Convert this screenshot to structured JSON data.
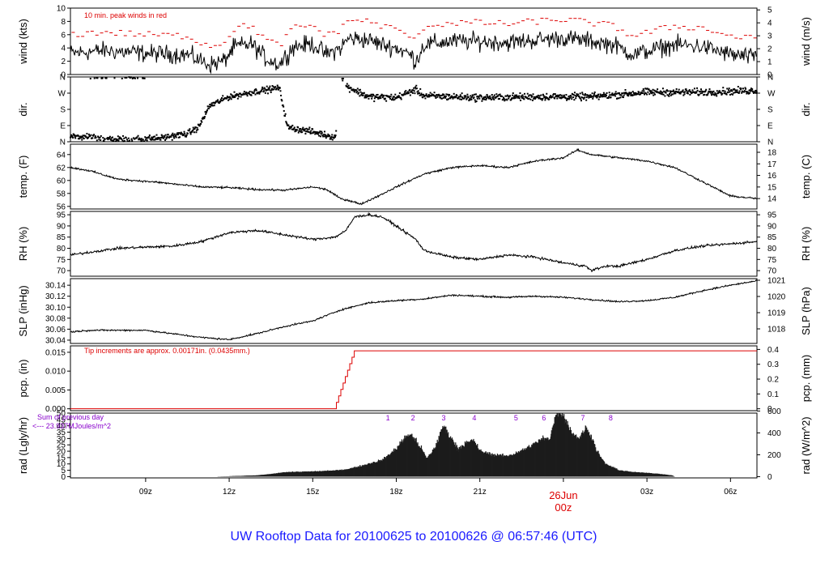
{
  "figure": {
    "title": "UW Rooftop Data for 20100625  to  20100626 @ 06:57:46  (UTC)",
    "title_color": "#1a1aff",
    "accent_red": "#dd0000",
    "purple": "#8800cc"
  },
  "x_axis": {
    "range_hours": [
      6.3,
      30.95
    ],
    "ticks": [
      {
        "hour": 9,
        "label": "09z"
      },
      {
        "hour": 12,
        "label": "12z"
      },
      {
        "hour": 15,
        "label": "15z"
      },
      {
        "hour": 18,
        "label": "18z"
      },
      {
        "hour": 21,
        "label": "21z"
      },
      {
        "hour": 24,
        "label": "00z"
      },
      {
        "hour": 27,
        "label": "03z"
      },
      {
        "hour": 30,
        "label": "06z"
      }
    ],
    "day_marker": {
      "hour": 24,
      "label_top": "26Jun",
      "label_bottom": "00z"
    }
  },
  "chart_data": [
    {
      "id": "wind",
      "type": "line",
      "ylabel_left": "wind (kts)",
      "ylabel_right": "wind (m/s)",
      "ylim": [
        0,
        10
      ],
      "yticks_left": [
        "0",
        "2",
        "4",
        "6",
        "8",
        "10"
      ],
      "yticks_right": [
        "0",
        "1",
        "2",
        "3",
        "4",
        "5"
      ],
      "ylim_right": [
        0,
        5.14
      ],
      "annotation": "10 min. peak winds in red",
      "keypoints": [
        [
          6.3,
          3.2
        ],
        [
          7.5,
          3.6
        ],
        [
          9,
          3.2
        ],
        [
          10.5,
          3.0
        ],
        [
          11.3,
          1.5
        ],
        [
          11.8,
          2.0
        ],
        [
          12.2,
          4.2
        ],
        [
          12.8,
          4.6
        ],
        [
          13.3,
          2.5
        ],
        [
          13.8,
          1.5
        ],
        [
          14.3,
          4.2
        ],
        [
          15,
          4.6
        ],
        [
          15.5,
          3.0
        ],
        [
          16,
          4.0
        ],
        [
          16.3,
          5.5
        ],
        [
          17,
          5.2
        ],
        [
          17.5,
          4.5
        ],
        [
          18,
          4.0
        ],
        [
          18.5,
          3.0
        ],
        [
          18.7,
          2.0
        ],
        [
          19,
          4.5
        ],
        [
          20,
          5.0
        ],
        [
          21,
          5.0
        ],
        [
          22,
          4.8
        ],
        [
          23,
          5.2
        ],
        [
          24,
          5.5
        ],
        [
          25,
          5.0
        ],
        [
          25.8,
          4.5
        ],
        [
          26.5,
          3.0
        ],
        [
          27,
          3.5
        ],
        [
          28,
          4.5
        ],
        [
          29,
          4.2
        ],
        [
          30,
          3.0
        ],
        [
          30.95,
          2.5
        ]
      ]
    },
    {
      "id": "dir",
      "type": "scatter",
      "ylabel_left": "dir.",
      "ylabel_right": "dir.",
      "ylim": [
        0,
        360
      ],
      "yticks_left": [
        "N",
        "E",
        "S",
        "W",
        "N"
      ],
      "yticks_right": [
        "N",
        "E",
        "S",
        "W",
        "N"
      ],
      "keypoints": [
        [
          6.3,
          30
        ],
        [
          8,
          15
        ],
        [
          9.5,
          20
        ],
        [
          10.5,
          45
        ],
        [
          10.9,
          80
        ],
        [
          11.3,
          200
        ],
        [
          12,
          250
        ],
        [
          13,
          280
        ],
        [
          13.8,
          300
        ],
        [
          14.1,
          80
        ],
        [
          15,
          55
        ],
        [
          15.8,
          25
        ],
        [
          16.2,
          310
        ],
        [
          17,
          250
        ],
        [
          18,
          245
        ],
        [
          18.7,
          290
        ],
        [
          19,
          255
        ],
        [
          21,
          245
        ],
        [
          23,
          250
        ],
        [
          25,
          250
        ],
        [
          27,
          275
        ],
        [
          29,
          275
        ],
        [
          30.95,
          285
        ]
      ]
    },
    {
      "id": "temp",
      "type": "line",
      "ylabel_left": "temp. (F)",
      "ylabel_right": "temp. (C)",
      "ylim": [
        55.6,
        65.6
      ],
      "yticks_left": [
        "56",
        "58",
        "60",
        "62",
        "64"
      ],
      "yticks_right": [
        "14",
        "15",
        "16",
        "17",
        "18"
      ],
      "ylim_right": [
        13.1,
        18.7
      ],
      "keypoints": [
        [
          6.3,
          62
        ],
        [
          7,
          61.5
        ],
        [
          8,
          60.2
        ],
        [
          9.5,
          59.7
        ],
        [
          11,
          59
        ],
        [
          12,
          58.9
        ],
        [
          13,
          58.6
        ],
        [
          14,
          58.5
        ],
        [
          15,
          59
        ],
        [
          15.5,
          58.6
        ],
        [
          16,
          57.2
        ],
        [
          16.5,
          56.7
        ],
        [
          16.7,
          56.3
        ],
        [
          17.3,
          57.5
        ],
        [
          18,
          59
        ],
        [
          19,
          61
        ],
        [
          20,
          62
        ],
        [
          21,
          62.3
        ],
        [
          22,
          62
        ],
        [
          23,
          63
        ],
        [
          24,
          63.5
        ],
        [
          24.5,
          64.7
        ],
        [
          25,
          64
        ],
        [
          26,
          63.5
        ],
        [
          27,
          63
        ],
        [
          28,
          62
        ],
        [
          29,
          59.8
        ],
        [
          30,
          57.6
        ],
        [
          30.95,
          57.2
        ]
      ]
    },
    {
      "id": "rh",
      "type": "line",
      "ylabel_left": "RH (%)",
      "ylabel_right": "RH (%)",
      "ylim": [
        67.5,
        96.5
      ],
      "yticks_left": [
        "70",
        "75",
        "80",
        "85",
        "90",
        "95"
      ],
      "yticks_right": [
        "70",
        "75",
        "80",
        "85",
        "90",
        "95"
      ],
      "keypoints": [
        [
          6.3,
          77
        ],
        [
          8,
          80
        ],
        [
          10,
          81
        ],
        [
          11,
          83
        ],
        [
          12,
          87
        ],
        [
          13,
          88
        ],
        [
          14,
          86
        ],
        [
          15,
          84
        ],
        [
          15.8,
          85
        ],
        [
          16.2,
          88
        ],
        [
          16.5,
          94
        ],
        [
          17,
          95
        ],
        [
          17.5,
          94
        ],
        [
          18,
          90
        ],
        [
          18.7,
          84
        ],
        [
          19,
          79
        ],
        [
          20,
          76
        ],
        [
          21,
          75
        ],
        [
          22,
          77
        ],
        [
          23,
          76
        ],
        [
          24,
          73.5
        ],
        [
          24.8,
          72
        ],
        [
          25,
          70
        ],
        [
          25.5,
          72
        ],
        [
          26,
          72
        ],
        [
          27,
          75
        ],
        [
          28,
          79
        ],
        [
          29,
          81
        ],
        [
          30,
          82
        ],
        [
          30.95,
          83
        ]
      ]
    },
    {
      "id": "slp",
      "type": "line",
      "ylabel_left": "SLP (inHg)",
      "ylabel_right": "SLP (hPa)",
      "ylim": [
        30.034,
        30.152
      ],
      "yticks_left": [
        "30.04",
        "30.06",
        "30.08",
        "30.10",
        "30.12",
        "30.14"
      ],
      "yticks_right": [
        "1018",
        "1019",
        "1020",
        "1021"
      ],
      "ylim_right": [
        1017.1,
        1021.1
      ],
      "keypoints": [
        [
          6.3,
          30.055
        ],
        [
          7,
          30.058
        ],
        [
          9,
          30.058
        ],
        [
          11,
          30.045
        ],
        [
          12,
          30.041
        ],
        [
          13,
          30.052
        ],
        [
          14,
          30.065
        ],
        [
          15,
          30.075
        ],
        [
          16,
          30.095
        ],
        [
          17,
          30.108
        ],
        [
          18,
          30.112
        ],
        [
          19,
          30.115
        ],
        [
          20,
          30.122
        ],
        [
          22,
          30.118
        ],
        [
          23,
          30.12
        ],
        [
          24,
          30.118
        ],
        [
          25,
          30.114
        ],
        [
          26,
          30.11
        ],
        [
          27,
          30.112
        ],
        [
          28,
          30.118
        ],
        [
          29,
          30.13
        ],
        [
          30,
          30.14
        ],
        [
          30.95,
          30.148
        ]
      ]
    },
    {
      "id": "pcp",
      "type": "line",
      "ylabel_left": "pcp. (in)",
      "ylabel_right": "pcp. (mm)",
      "ylim": [
        -0.0005,
        0.0167
      ],
      "yticks_left": [
        "0.000",
        "0.005",
        "0.010",
        "0.015"
      ],
      "yticks_right": [
        "0",
        "0.1",
        "0.2",
        "0.3",
        "0.4"
      ],
      "ylim_right": [
        -0.0127,
        0.424
      ],
      "annotation": "Tip increments are approx. 0.00171in. (0.0435mm.)",
      "keypoints": [
        [
          6.3,
          0
        ],
        [
          15.85,
          0
        ],
        [
          16.05,
          0.00342
        ],
        [
          16.4,
          0.0137
        ],
        [
          16.6,
          0.0154
        ],
        [
          30.95,
          0.0154
        ]
      ]
    },
    {
      "id": "rad",
      "type": "area",
      "ylabel_left": "rad (Lgly/hr)",
      "ylabel_right": "rad (W/m^2)",
      "ylim": [
        -1,
        50
      ],
      "yticks_left": [
        "0",
        "5",
        "10",
        "15",
        "20",
        "25",
        "30",
        "35",
        "40",
        "45",
        "50"
      ],
      "yticks_right": [
        "0",
        "200",
        "400",
        "600"
      ],
      "ylim_right": [
        -11.6,
        581
      ],
      "annotation_line1": "Sum of previous day",
      "annotation_line2": "<--- 23.937MJoules/m^2",
      "cloud_labels": [
        {
          "hour": 17.7,
          "label": "1"
        },
        {
          "hour": 18.6,
          "label": "2"
        },
        {
          "hour": 19.7,
          "label": "3"
        },
        {
          "hour": 20.8,
          "label": "4"
        },
        {
          "hour": 22.3,
          "label": "5"
        },
        {
          "hour": 23.3,
          "label": "6"
        },
        {
          "hour": 24.7,
          "label": "7"
        },
        {
          "hour": 25.7,
          "label": "8"
        }
      ],
      "keypoints": [
        [
          6.3,
          0
        ],
        [
          11.5,
          0
        ],
        [
          12,
          0.3
        ],
        [
          13,
          1
        ],
        [
          13.5,
          2
        ],
        [
          14,
          3.5
        ],
        [
          15,
          4
        ],
        [
          16,
          5
        ],
        [
          16.5,
          7
        ],
        [
          17,
          10
        ],
        [
          17.5,
          13
        ],
        [
          17.8,
          18
        ],
        [
          18,
          22
        ],
        [
          18.3,
          30
        ],
        [
          18.5,
          33
        ],
        [
          18.7,
          28
        ],
        [
          18.9,
          22
        ],
        [
          19.1,
          14
        ],
        [
          19.4,
          23
        ],
        [
          19.7,
          40
        ],
        [
          19.9,
          32
        ],
        [
          20.2,
          22
        ],
        [
          20.5,
          26
        ],
        [
          20.8,
          28
        ],
        [
          21,
          20
        ],
        [
          21.5,
          17
        ],
        [
          22,
          16
        ],
        [
          22.5,
          20
        ],
        [
          23,
          26
        ],
        [
          23.3,
          30
        ],
        [
          23.5,
          28
        ],
        [
          23.7,
          47
        ],
        [
          23.9,
          52
        ],
        [
          24.1,
          44
        ],
        [
          24.3,
          34
        ],
        [
          24.6,
          30
        ],
        [
          24.8,
          38
        ],
        [
          25,
          32
        ],
        [
          25.2,
          20
        ],
        [
          25.5,
          10
        ],
        [
          26,
          5
        ],
        [
          26.5,
          3.5
        ],
        [
          27,
          3
        ],
        [
          27.5,
          2
        ],
        [
          27.9,
          1
        ],
        [
          28,
          0
        ],
        [
          30.95,
          0
        ]
      ]
    }
  ]
}
